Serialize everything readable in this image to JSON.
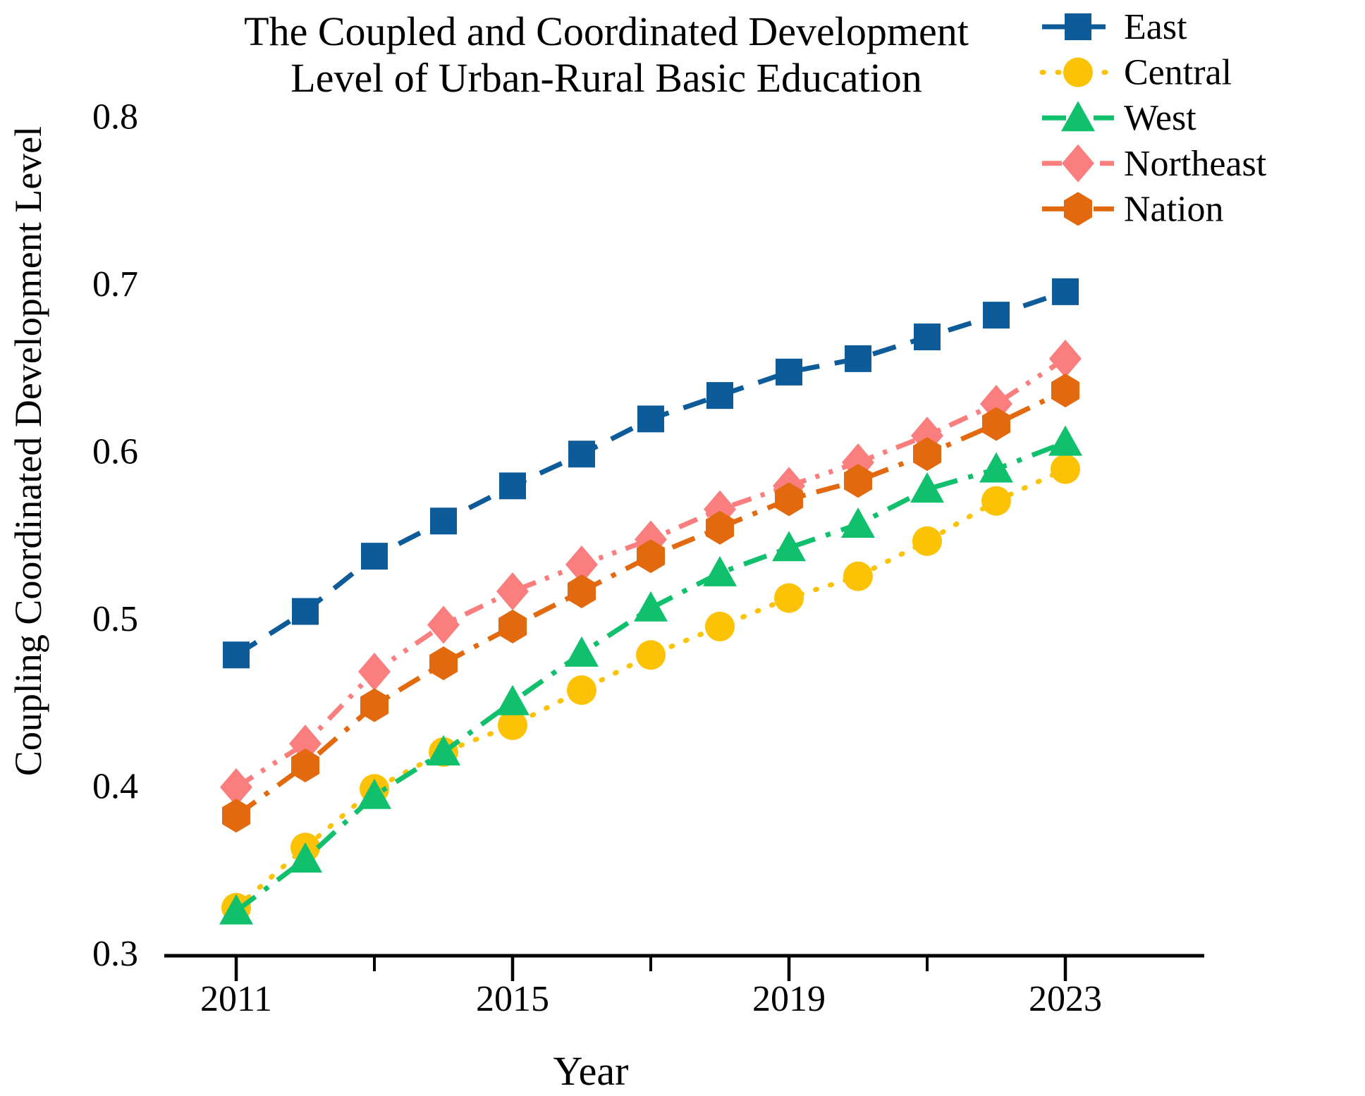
{
  "figure": {
    "title_line1": "The Coupled and Coordinated Development",
    "title_line2": "Level of Urban-Rural Basic Education",
    "x_axis_label": "Year",
    "y_axis_label": "Coupling Coordinated Development Level"
  },
  "chart_data": {
    "type": "line",
    "title": "The Coupled and Coordinated Development Level of Urban-Rural Basic Education",
    "xlabel": "Year",
    "ylabel": "Coupling Coordinated Development Level",
    "x": [
      2011,
      2012,
      2013,
      2014,
      2015,
      2016,
      2017,
      2018,
      2019,
      2020,
      2021,
      2022,
      2023
    ],
    "xlim": [
      2010,
      2025
    ],
    "ylim": [
      0.3,
      0.8
    ],
    "x_major_ticks": [
      2011,
      2015,
      2019,
      2023
    ],
    "x_major_tick_labels": [
      "2011",
      "2015",
      "2019",
      "2023"
    ],
    "x_minor_ticks": [
      2013,
      2017,
      2021
    ],
    "y_ticks": [
      0.3,
      0.4,
      0.5,
      0.6,
      0.7,
      0.8
    ],
    "y_tick_labels": [
      "0.3",
      "0.4",
      "0.5",
      "0.6",
      "0.7",
      "0.8"
    ],
    "grid": false,
    "legend_position": "top-right",
    "series": [
      {
        "name": "East",
        "color": "#0d5c99",
        "marker": "square",
        "dash": "dashed",
        "values": [
          0.478,
          0.504,
          0.537,
          0.558,
          0.579,
          0.598,
          0.619,
          0.633,
          0.647,
          0.655,
          0.668,
          0.681,
          0.695
        ]
      },
      {
        "name": "Central",
        "color": "#fcc306",
        "marker": "circle",
        "dash": "dotted",
        "values": [
          0.327,
          0.363,
          0.398,
          0.42,
          0.436,
          0.457,
          0.478,
          0.495,
          0.512,
          0.525,
          0.546,
          0.57,
          0.589
        ]
      },
      {
        "name": "West",
        "color": "#10c06d",
        "marker": "triangle",
        "dash": "dashdot",
        "values": [
          0.325,
          0.356,
          0.394,
          0.42,
          0.45,
          0.479,
          0.506,
          0.527,
          0.542,
          0.556,
          0.577,
          0.589,
          0.605
        ]
      },
      {
        "name": "Northeast",
        "color": "#fa7e7e",
        "marker": "diamond",
        "dash": "dashdotdot",
        "values": [
          0.399,
          0.425,
          0.468,
          0.496,
          0.516,
          0.532,
          0.547,
          0.565,
          0.579,
          0.593,
          0.609,
          0.628,
          0.655
        ]
      },
      {
        "name": "Nation",
        "color": "#e2690e",
        "marker": "hexagon",
        "dash": "dashdot",
        "values": [
          0.382,
          0.412,
          0.448,
          0.473,
          0.495,
          0.516,
          0.537,
          0.554,
          0.571,
          0.582,
          0.598,
          0.616,
          0.636
        ]
      }
    ]
  }
}
